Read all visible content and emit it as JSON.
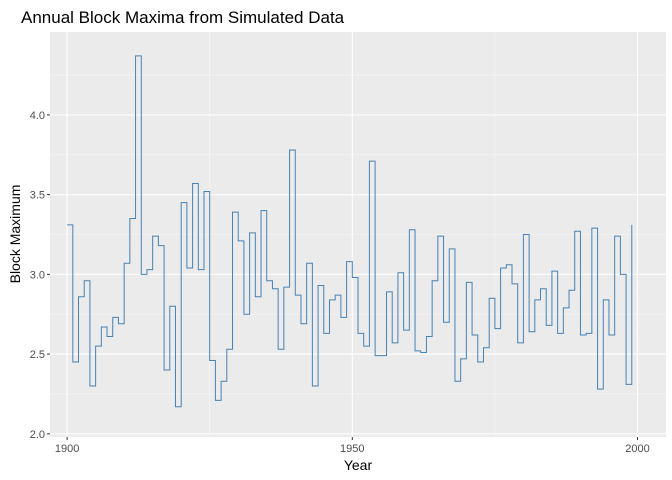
{
  "chart_data": {
    "type": "line",
    "step": true,
    "title": "Annual Block Maxima from Simulated Data",
    "xlabel": "Year",
    "ylabel": "Block Maximum",
    "xlim": [
      1897,
      2005
    ],
    "ylim": [
      1.98,
      4.52
    ],
    "xticks": [
      1900,
      1950,
      2000
    ],
    "xtick_labels": [
      "1900",
      "1950",
      "2000"
    ],
    "xminor": [
      1925,
      1975
    ],
    "yticks": [
      2.0,
      2.5,
      3.0,
      3.5,
      4.0
    ],
    "ytick_labels": [
      "2.0",
      "2.5",
      "3.0",
      "3.5",
      "4.0"
    ],
    "yminor": [
      2.25,
      2.75,
      3.25,
      3.75,
      4.25
    ],
    "grid": true,
    "background": "#ebebeb",
    "line_color": "#4682b4",
    "series": [
      {
        "x": [
          1900,
          1901,
          1902,
          1903,
          1904,
          1905,
          1906,
          1907,
          1908,
          1909,
          1910,
          1911,
          1912,
          1913,
          1914,
          1915,
          1916,
          1917,
          1918,
          1919,
          1920,
          1921,
          1922,
          1923,
          1924,
          1925,
          1926,
          1927,
          1928,
          1929,
          1930,
          1931,
          1932,
          1933,
          1934,
          1935,
          1936,
          1937,
          1938,
          1939,
          1940,
          1941,
          1942,
          1943,
          1944,
          1945,
          1946,
          1947,
          1948,
          1949,
          1950,
          1951,
          1952,
          1953,
          1954,
          1955,
          1956,
          1957,
          1958,
          1959,
          1960,
          1961,
          1962,
          1963,
          1964,
          1965,
          1966,
          1967,
          1968,
          1969,
          1970,
          1971,
          1972,
          1973,
          1974,
          1975,
          1976,
          1977,
          1978,
          1979,
          1980,
          1981,
          1982,
          1983,
          1984,
          1985,
          1986,
          1987,
          1988,
          1989,
          1990,
          1991,
          1992,
          1993,
          1994,
          1995,
          1996,
          1997,
          1998,
          1999
        ],
        "y": [
          3.31,
          2.45,
          2.86,
          2.96,
          2.3,
          2.55,
          2.67,
          2.61,
          2.73,
          2.69,
          3.07,
          3.35,
          4.37,
          3.0,
          3.03,
          3.24,
          3.18,
          2.4,
          2.8,
          2.17,
          3.45,
          3.04,
          3.57,
          3.03,
          3.52,
          2.46,
          2.21,
          2.33,
          2.53,
          3.39,
          3.21,
          2.75,
          3.26,
          2.86,
          3.4,
          2.96,
          2.91,
          2.53,
          2.92,
          3.78,
          2.87,
          2.69,
          3.07,
          2.3,
          2.93,
          2.63,
          2.84,
          2.87,
          2.73,
          3.08,
          2.98,
          2.63,
          2.55,
          3.71,
          2.49,
          2.49,
          2.89,
          2.57,
          3.01,
          2.65,
          3.28,
          2.52,
          2.51,
          2.61,
          2.96,
          3.24,
          2.7,
          3.16,
          2.33,
          2.47,
          2.95,
          2.62,
          2.45,
          2.54,
          2.85,
          2.66,
          3.04,
          3.06,
          2.94,
          2.57,
          3.25,
          2.64,
          2.84,
          2.91,
          2.68,
          3.02,
          2.63,
          2.79,
          2.9,
          3.27,
          2.62,
          2.63,
          3.29,
          2.28,
          2.84,
          2.62,
          3.24,
          3.0,
          2.31,
          3.31
        ]
      }
    ]
  }
}
